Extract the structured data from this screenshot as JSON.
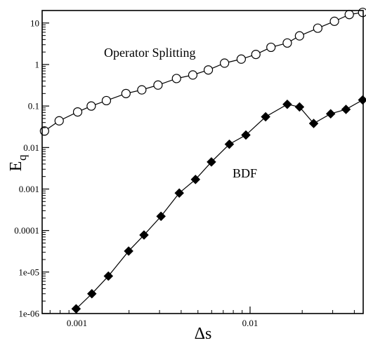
{
  "chart_data": {
    "type": "scatter",
    "title": "",
    "xlabel": "Δs",
    "ylabel_main": "E",
    "ylabel_sub": "q",
    "x_scale": "log",
    "y_scale": "log",
    "xlim": [
      0.00063,
      0.045
    ],
    "ylim": [
      1e-06,
      20
    ],
    "x_ticks": [
      0.001,
      0.01
    ],
    "x_tick_labels": [
      "0.001",
      "0.01"
    ],
    "y_ticks": [
      1e-06,
      1e-05,
      0.0001,
      0.001,
      0.01,
      0.1,
      1,
      10
    ],
    "y_tick_labels": [
      "1e-06",
      "1e-05",
      "0.0001",
      "0.001",
      "0.01",
      "0.1",
      "1",
      "10"
    ],
    "grid": false,
    "annotations": [
      "Operator Splitting",
      "BDF"
    ],
    "series": [
      {
        "marker": "circle-open",
        "color": "#000000",
        "x": [
          0.00065,
          0.00079,
          0.00101,
          0.00121,
          0.00148,
          0.00192,
          0.00237,
          0.00294,
          0.00376,
          0.00467,
          0.00574,
          0.00712,
          0.00889,
          0.0108,
          0.0132,
          0.0164,
          0.0193,
          0.0246,
          0.0307,
          0.0374,
          0.0447
        ],
        "y": [
          0.025,
          0.044,
          0.072,
          0.1,
          0.135,
          0.2,
          0.245,
          0.32,
          0.46,
          0.56,
          0.74,
          1.08,
          1.35,
          1.75,
          2.6,
          3.3,
          4.9,
          7.5,
          11,
          16,
          18
        ]
      },
      {
        "marker": "diamond-filled",
        "color": "#000000",
        "x": [
          0.00099,
          0.00122,
          0.00152,
          0.00199,
          0.00244,
          0.00306,
          0.0039,
          0.00484,
          0.00598,
          0.00759,
          0.00946,
          0.0123,
          0.0164,
          0.0193,
          0.0233,
          0.0292,
          0.0358,
          0.0447
        ],
        "y": [
          1.3e-06,
          3e-06,
          8e-06,
          3.2e-05,
          7.8e-05,
          0.00022,
          0.0008,
          0.0017,
          0.0045,
          0.012,
          0.02,
          0.055,
          0.11,
          0.095,
          0.038,
          0.065,
          0.083,
          0.14
        ]
      }
    ]
  }
}
